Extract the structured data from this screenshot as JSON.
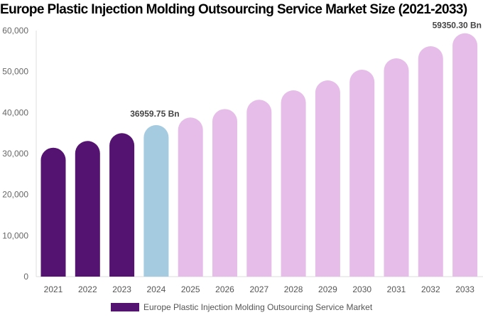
{
  "chart_data": {
    "type": "bar",
    "title": "Europe Plastic Injection Molding Outsourcing Service Market Size (2021-2033)",
    "categories": [
      "2021",
      "2022",
      "2023",
      "2024",
      "2025",
      "2026",
      "2027",
      "2028",
      "2029",
      "2030",
      "2031",
      "2032",
      "2033"
    ],
    "series": [
      {
        "name": "Europe Plastic Injection Molding Outsourcing Service Market",
        "values": [
          31440,
          33070,
          34980,
          36959.75,
          38790,
          40870,
          43130,
          45430,
          47860,
          50460,
          53240,
          56180,
          59350.3
        ]
      }
    ],
    "data_labels": [
      {
        "category": "2024",
        "text": "36959.75 Bn"
      },
      {
        "category": "2033",
        "text": "59350.30 Bn"
      }
    ],
    "ylim": [
      0,
      60000
    ],
    "yticks": [
      0,
      10000,
      20000,
      30000,
      40000,
      50000,
      60000
    ],
    "ytick_labels": [
      "0",
      "10,000",
      "20,000",
      "30,000",
      "40,000",
      "50,000",
      "60,000"
    ],
    "xlabel": "",
    "ylabel": "",
    "grid": false,
    "legend_position": "bottom",
    "colors": {
      "historical": "#541271",
      "current": "#a4cbe0",
      "forecast": "#e6bde9"
    },
    "color_by_category": [
      "historical",
      "historical",
      "historical",
      "current",
      "forecast",
      "forecast",
      "forecast",
      "forecast",
      "forecast",
      "forecast",
      "forecast",
      "forecast",
      "forecast"
    ],
    "legend_color": "#541271"
  }
}
